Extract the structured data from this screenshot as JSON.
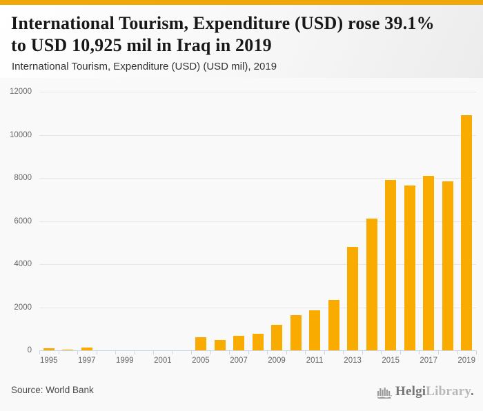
{
  "header": {
    "title_line1": "International Tourism, Expenditure (USD) rose 39.1%",
    "title_line2": "to USD 10,925 mil in Iraq in 2019",
    "subtitle": "International Tourism, Expenditure (USD) (USD mil), 2019"
  },
  "footer": {
    "source": "Source: World Bank",
    "logo_primary": "Helgi",
    "logo_secondary": "Library",
    "logo_suffix": "."
  },
  "colors": {
    "accent_band": "#f0a70a",
    "bar": "#faab00",
    "grid": "#e6e6e6",
    "axis": "#c9d4e7",
    "tick_label": "#666666"
  },
  "chart_data": {
    "type": "bar",
    "title": "International Tourism, Expenditure (USD) rose 39.1% to USD 10,925 mil in Iraq in 2019",
    "subtitle": "International Tourism, Expenditure (USD) (USD mil), 2019",
    "xlabel": "",
    "ylabel": "USD mil",
    "categories": [
      "1995",
      "1996",
      "1997",
      "1998",
      "1999",
      "2000",
      "2001",
      "2002",
      "2005",
      "2006",
      "2007",
      "2008",
      "2009",
      "2010",
      "2011",
      "2012",
      "2013",
      "2014",
      "2015",
      "2016",
      "2017",
      "2018",
      "2019"
    ],
    "values": [
      105,
      45,
      115,
      0,
      0,
      0,
      0,
      0,
      600,
      470,
      660,
      760,
      1180,
      1620,
      1840,
      2330,
      4800,
      6100,
      7910,
      7640,
      8080,
      7840,
      10925
    ],
    "x_tick_labels_shown": [
      "1995",
      "1997",
      "1999",
      "2001",
      "2005",
      "2007",
      "2009",
      "2011",
      "2013",
      "2015",
      "2017",
      "2019"
    ],
    "y_ticks": [
      0,
      2000,
      4000,
      6000,
      8000,
      10000,
      12000
    ],
    "ylim": [
      0,
      12000
    ],
    "grid": true,
    "legend": false,
    "bar_color": "#faab00",
    "note": "years 2003 and 2004 absent from axis"
  }
}
